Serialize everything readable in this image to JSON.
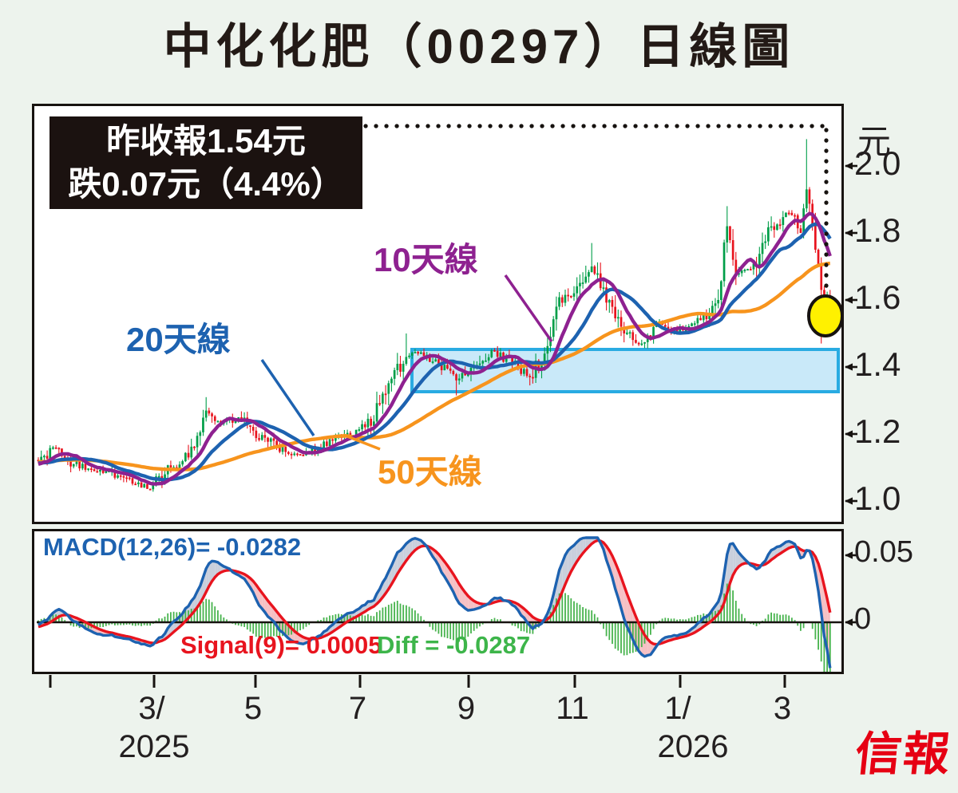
{
  "header": {
    "title": "中化化肥（00297）日線圖"
  },
  "info_box": {
    "line1": "昨收報1.54元",
    "line2": "跌0.07元（4.4%）"
  },
  "legend": {
    "ma10": "10天線",
    "ma20": "20天線",
    "ma50": "50天線"
  },
  "macd_labels": {
    "macd": "MACD(12,26)= -0.0282",
    "signal": "Signal(9)= 0.0005",
    "diff": "Diff = -0.0287"
  },
  "logo": {
    "text": "信報"
  },
  "colors": {
    "up": "#009e48",
    "down": "#e8141e",
    "ma10": "#8e2190",
    "ma20": "#1d62b0",
    "ma50": "#f7941d",
    "macd_line": "#1d62b0",
    "signal_line": "#e8141e",
    "hist": "#47b34d",
    "fill_above": "#c9cfdc",
    "fill_below": "#f6c0c4",
    "zone_border": "#29abe2",
    "zone_fill": "#c9e9f9",
    "circle_fill": "#fff100",
    "axis": "#171310",
    "logo_red": "#e60013"
  },
  "chart_data": {
    "type": "candlestick",
    "title": "中化化肥（00297）日線圖",
    "subtitle_annotation": "昨收報1.54元 跌0.07元（4.4%）",
    "last_close": 1.54,
    "change": -0.07,
    "change_pct": -4.4,
    "y_axis": {
      "unit": "元",
      "tick_labels": [
        "2.0",
        "1.8",
        "1.6",
        "1.4",
        "1.2",
        "1.0"
      ],
      "tick_values": [
        2.0,
        1.8,
        1.6,
        1.4,
        1.2,
        1.0
      ],
      "range_approx": [
        0.93,
        2.17
      ]
    },
    "macd_axis": {
      "tick_labels": [
        "0.05",
        "0"
      ],
      "tick_values": [
        0.05,
        0
      ]
    },
    "x_axis": {
      "tick_labels": [
        "3/",
        "5",
        "7",
        "9",
        "11",
        "1/",
        "3"
      ],
      "years": [
        "2025",
        "2026"
      ],
      "year_under": [
        "3/",
        "1/"
      ]
    },
    "moving_averages": [
      {
        "name": "10天線",
        "period": 10
      },
      {
        "name": "20天線",
        "period": 20
      },
      {
        "name": "50天線",
        "period": 50
      }
    ],
    "macd_values": {
      "macd_12_26": -0.0282,
      "signal_9": 0.0005,
      "diff": -0.0287
    },
    "consolidation_zone": {
      "price_low": 1.33,
      "price_high": 1.455,
      "from_day": 127,
      "to_day": 270
    },
    "highlight_circle_day": 267,
    "total_days": 270,
    "price_path": [
      [
        0,
        1.12
      ],
      [
        5,
        1.16
      ],
      [
        12,
        1.11
      ],
      [
        23,
        1.09
      ],
      [
        33,
        1.05
      ],
      [
        38,
        1.035
      ],
      [
        45,
        1.1
      ],
      [
        51,
        1.13
      ],
      [
        57,
        1.27
      ],
      [
        62,
        1.23
      ],
      [
        68,
        1.25
      ],
      [
        73,
        1.21
      ],
      [
        81,
        1.16
      ],
      [
        88,
        1.14
      ],
      [
        95,
        1.16
      ],
      [
        103,
        1.19
      ],
      [
        111,
        1.22
      ],
      [
        118,
        1.32
      ],
      [
        125,
        1.43
      ],
      [
        129,
        1.44
      ],
      [
        136,
        1.41
      ],
      [
        142,
        1.36
      ],
      [
        148,
        1.4
      ],
      [
        154,
        1.45
      ],
      [
        161,
        1.41
      ],
      [
        167,
        1.37
      ],
      [
        172,
        1.44
      ],
      [
        176,
        1.58
      ],
      [
        182,
        1.62
      ],
      [
        188,
        1.7
      ],
      [
        194,
        1.6
      ],
      [
        199,
        1.5
      ],
      [
        205,
        1.47
      ],
      [
        211,
        1.53
      ],
      [
        217,
        1.5
      ],
      [
        222,
        1.53
      ],
      [
        228,
        1.56
      ],
      [
        231,
        1.6
      ],
      [
        234,
        1.82
      ],
      [
        236,
        1.72
      ],
      [
        238,
        1.68
      ],
      [
        244,
        1.7
      ],
      [
        249,
        1.82
      ],
      [
        255,
        1.86
      ],
      [
        259,
        1.8
      ],
      [
        261,
        1.93
      ],
      [
        264,
        1.75
      ],
      [
        266,
        1.63
      ],
      [
        267,
        1.57
      ],
      [
        268,
        1.61
      ],
      [
        269,
        1.54
      ]
    ],
    "wick_overrides": {
      "57": {
        "h": 1.31
      },
      "125": {
        "h": 1.5
      },
      "142": {
        "l": 1.315
      },
      "167": {
        "l": 1.345
      },
      "188": {
        "h": 1.77
      },
      "234": {
        "h": 1.88
      },
      "261": {
        "h": 2.08
      },
      "264": {
        "h": 1.86
      },
      "266": {
        "l": 1.47
      },
      "269": {
        "l": 1.49,
        "h": 1.63
      }
    }
  }
}
